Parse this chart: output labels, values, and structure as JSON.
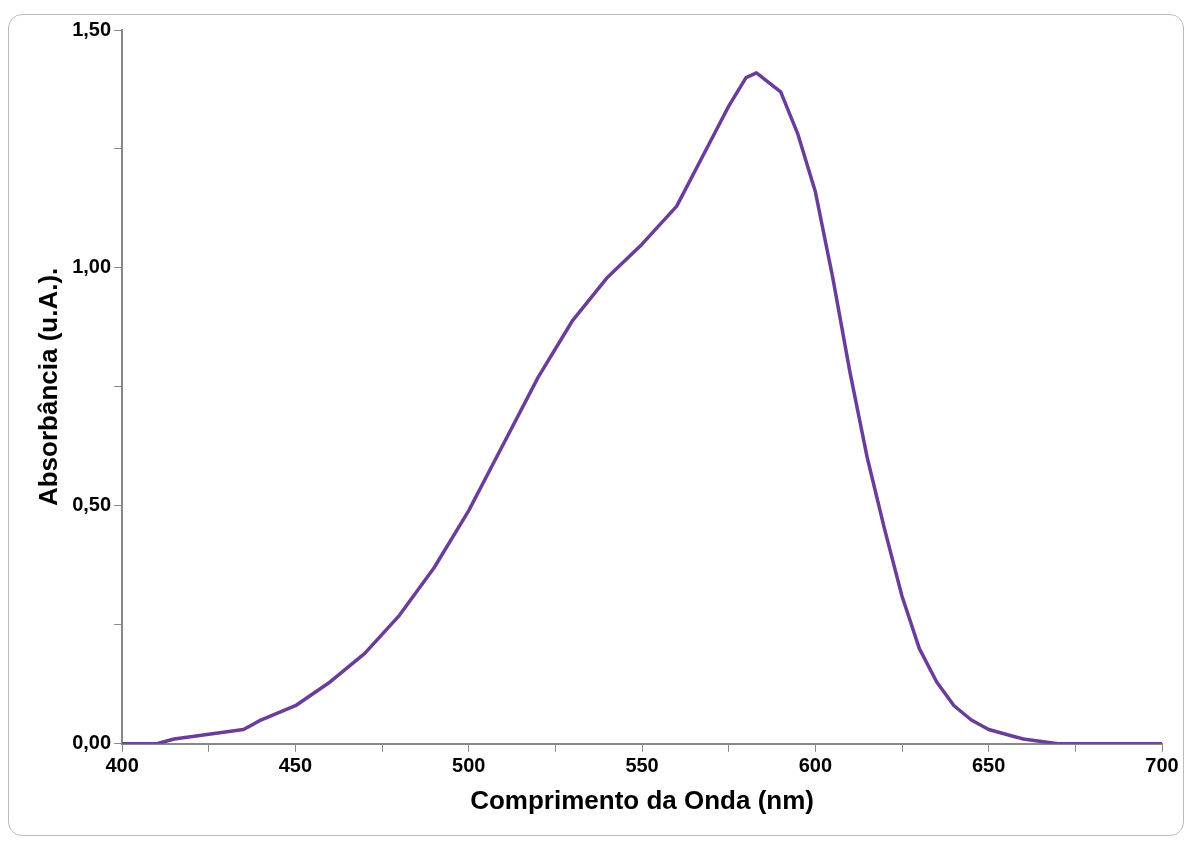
{
  "chart_data": {
    "type": "line",
    "xlabel": "Comprimento da Onda (nm)",
    "ylabel": "Absorbância (u.A.).",
    "x": [
      400,
      410,
      415,
      425,
      435,
      440,
      450,
      460,
      470,
      480,
      490,
      500,
      510,
      520,
      530,
      540,
      550,
      560,
      570,
      575,
      580,
      583,
      590,
      595,
      600,
      605,
      610,
      615,
      620,
      625,
      630,
      635,
      640,
      645,
      650,
      660,
      670,
      690,
      700
    ],
    "series": [
      {
        "color": "#6a3d9a",
        "values": [
          0.0,
          0.0,
          0.01,
          0.02,
          0.03,
          0.05,
          0.08,
          0.13,
          0.19,
          0.27,
          0.37,
          0.49,
          0.63,
          0.77,
          0.89,
          0.98,
          1.05,
          1.13,
          1.27,
          1.34,
          1.4,
          1.41,
          1.37,
          1.28,
          1.16,
          0.98,
          0.78,
          0.6,
          0.45,
          0.31,
          0.2,
          0.13,
          0.08,
          0.05,
          0.03,
          0.01,
          0.0,
          0.0,
          0.0
        ]
      }
    ],
    "xlim": [
      400,
      700
    ],
    "xticks": [
      400,
      {
        "value": 425,
        "label": null
      },
      450,
      {
        "value": 475,
        "label": null
      },
      500,
      {
        "value": 525,
        "label": null
      },
      550,
      {
        "value": 575,
        "label": null
      },
      600,
      {
        "value": 625,
        "label": null
      },
      650,
      {
        "value": 675,
        "label": null
      },
      700
    ],
    "ylim": [
      0,
      1.5
    ],
    "yticks": [
      {
        "value": 0,
        "label": "0,00"
      },
      {
        "value": 0.25,
        "label": null
      },
      {
        "value": 0.5,
        "label": "0,50"
      },
      {
        "value": 0.75,
        "label": null
      },
      {
        "value": 1,
        "label": "1,00"
      },
      {
        "value": 1.25,
        "label": null
      },
      {
        "value": 1.5,
        "label": "1,50"
      }
    ],
    "grid": false,
    "legend": false,
    "marker": "none",
    "line_style": "solid"
  }
}
